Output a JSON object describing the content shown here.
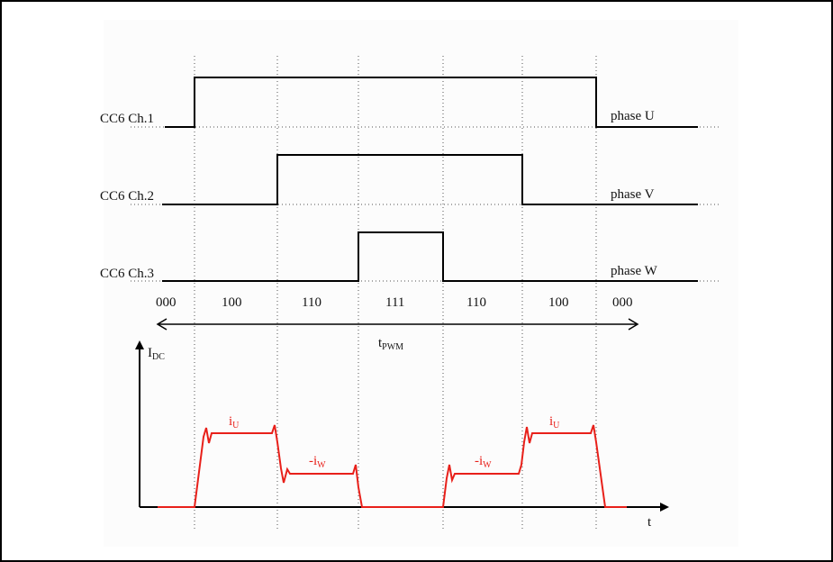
{
  "signals": [
    {
      "channel": "CC6 Ch.1",
      "phase": "phase U"
    },
    {
      "channel": "CC6 Ch.2",
      "phase": "phase V"
    },
    {
      "channel": "CC6 Ch.3",
      "phase": "phase W"
    }
  ],
  "states": [
    "000",
    "100",
    "110",
    "111",
    "110",
    "100",
    "000"
  ],
  "period": {
    "base": "t",
    "sub": "PWM"
  },
  "current_axis": {
    "base": "I",
    "sub": "DC",
    "x_label": "t"
  },
  "current_labels": [
    {
      "base": "i",
      "sub": "U"
    },
    {
      "base": "-i",
      "sub": "W"
    },
    {
      "base": "-i",
      "sub": "W"
    },
    {
      "base": "i",
      "sub": "U"
    }
  ],
  "colors": {
    "trace": "#000000",
    "current": "#e8201a",
    "guide": "#555555"
  }
}
